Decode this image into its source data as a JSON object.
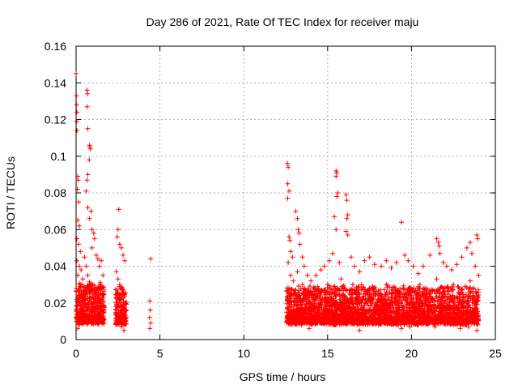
{
  "chart_data": {
    "type": "scatter",
    "title": "Day 286 of 2021, Rate Of TEC Index for receiver maju",
    "xlabel": "GPS time / hours",
    "ylabel": "ROTI / TECUs",
    "xlim": [
      0,
      25
    ],
    "ylim": [
      0,
      0.16
    ],
    "xticks": [
      0,
      5,
      10,
      15,
      20,
      25
    ],
    "xtick_labels": [
      "0",
      "5",
      "10",
      "15",
      "20",
      "25"
    ],
    "yticks": [
      0,
      0.02,
      0.04,
      0.06,
      0.08,
      0.1,
      0.12,
      0.14,
      0.16
    ],
    "ytick_labels": [
      "0",
      "0.02",
      "0.04",
      "0.06",
      "0.08",
      "0.1",
      "0.12",
      "0.14",
      "0.16"
    ],
    "grid": true,
    "marker": "+",
    "color": "#ff0000",
    "series": [
      {
        "name": "ROTI",
        "points": [
          [
            0.0,
            0.145
          ],
          [
            0.02,
            0.133
          ],
          [
            0.03,
            0.128
          ],
          [
            0.05,
            0.124
          ],
          [
            0.05,
            0.114
          ],
          [
            0.04,
            0.119
          ],
          [
            0.1,
            0.089
          ],
          [
            0.12,
            0.087
          ],
          [
            0.08,
            0.082
          ],
          [
            0.15,
            0.075
          ],
          [
            0.1,
            0.065
          ],
          [
            0.2,
            0.062
          ],
          [
            0.05,
            0.055
          ],
          [
            0.15,
            0.052
          ],
          [
            0.25,
            0.048
          ],
          [
            0.05,
            0.043
          ],
          [
            0.2,
            0.04
          ],
          [
            0.3,
            0.038
          ],
          [
            0.1,
            0.035
          ],
          [
            0.4,
            0.033
          ],
          [
            0.5,
            0.045
          ],
          [
            0.6,
            0.04
          ],
          [
            0.35,
            0.03
          ],
          [
            0.45,
            0.025
          ],
          [
            0.55,
            0.02
          ],
          [
            0.7,
            0.035
          ],
          [
            0.8,
            0.03
          ],
          [
            0.9,
            0.025
          ],
          [
            0.3,
            0.015
          ],
          [
            0.5,
            0.012
          ],
          [
            0.65,
            0.136
          ],
          [
            0.68,
            0.134
          ],
          [
            0.66,
            0.127
          ],
          [
            0.7,
            0.115
          ],
          [
            0.8,
            0.106
          ],
          [
            0.82,
            0.105
          ],
          [
            0.85,
            0.104
          ],
          [
            0.78,
            0.098
          ],
          [
            0.7,
            0.09
          ],
          [
            0.65,
            0.087
          ],
          [
            0.6,
            0.081
          ],
          [
            0.7,
            0.072
          ],
          [
            0.9,
            0.07
          ],
          [
            0.8,
            0.066
          ],
          [
            0.95,
            0.06
          ],
          [
            1.05,
            0.058
          ],
          [
            1.1,
            0.055
          ],
          [
            0.95,
            0.05
          ],
          [
            1.2,
            0.046
          ],
          [
            1.3,
            0.044
          ],
          [
            1.4,
            0.04
          ],
          [
            1.5,
            0.043
          ],
          [
            1.6,
            0.035
          ],
          [
            1.0,
            0.03
          ],
          [
            1.15,
            0.025
          ],
          [
            1.3,
            0.02
          ],
          [
            1.5,
            0.018
          ],
          [
            1.6,
            0.015
          ],
          [
            1.2,
            0.01
          ],
          [
            0.2,
            0.008
          ],
          [
            0.1,
            0.006
          ],
          [
            0.05,
            0.018
          ],
          [
            1.45,
            0.028
          ],
          [
            1.55,
            0.022
          ],
          [
            0.75,
            0.02
          ],
          [
            2.55,
            0.071
          ],
          [
            2.5,
            0.06
          ],
          [
            2.45,
            0.056
          ],
          [
            2.6,
            0.052
          ],
          [
            2.7,
            0.05
          ],
          [
            2.8,
            0.046
          ],
          [
            2.9,
            0.043
          ],
          [
            2.4,
            0.037
          ],
          [
            2.5,
            0.033
          ],
          [
            2.6,
            0.03
          ],
          [
            2.75,
            0.028
          ],
          [
            2.85,
            0.025
          ],
          [
            2.5,
            0.022
          ],
          [
            2.65,
            0.02
          ],
          [
            2.8,
            0.017
          ],
          [
            2.9,
            0.015
          ],
          [
            2.45,
            0.012
          ],
          [
            2.6,
            0.009
          ],
          [
            2.7,
            0.007
          ],
          [
            2.85,
            0.005
          ],
          [
            2.55,
            0.014
          ],
          [
            2.75,
            0.01
          ],
          [
            4.45,
            0.044
          ],
          [
            4.4,
            0.021
          ],
          [
            4.42,
            0.016
          ],
          [
            4.38,
            0.012
          ],
          [
            4.45,
            0.009
          ],
          [
            4.4,
            0.006
          ],
          [
            12.6,
            0.096
          ],
          [
            12.65,
            0.094
          ],
          [
            12.62,
            0.085
          ],
          [
            12.7,
            0.081
          ],
          [
            12.62,
            0.077
          ],
          [
            12.7,
            0.056
          ],
          [
            12.75,
            0.054
          ],
          [
            12.8,
            0.048
          ],
          [
            12.9,
            0.045
          ],
          [
            12.65,
            0.042
          ],
          [
            12.8,
            0.035
          ],
          [
            12.95,
            0.032
          ],
          [
            13.1,
            0.07
          ],
          [
            13.2,
            0.066
          ],
          [
            13.25,
            0.06
          ],
          [
            13.3,
            0.058
          ],
          [
            13.35,
            0.052
          ],
          [
            13.5,
            0.045
          ],
          [
            13.6,
            0.04
          ],
          [
            13.2,
            0.037
          ],
          [
            13.8,
            0.035
          ],
          [
            14.0,
            0.032
          ],
          [
            14.3,
            0.035
          ],
          [
            14.6,
            0.038
          ],
          [
            14.8,
            0.04
          ],
          [
            15.1,
            0.043
          ],
          [
            15.5,
            0.092
          ],
          [
            15.55,
            0.091
          ],
          [
            15.5,
            0.089
          ],
          [
            15.6,
            0.08
          ],
          [
            15.55,
            0.078
          ],
          [
            15.4,
            0.067
          ],
          [
            15.5,
            0.06
          ],
          [
            15.3,
            0.047
          ],
          [
            15.7,
            0.042
          ],
          [
            16.1,
            0.079
          ],
          [
            16.15,
            0.076
          ],
          [
            16.2,
            0.068
          ],
          [
            16.15,
            0.066
          ],
          [
            16.1,
            0.059
          ],
          [
            16.2,
            0.057
          ],
          [
            16.4,
            0.045
          ],
          [
            16.6,
            0.04
          ],
          [
            16.9,
            0.037
          ],
          [
            17.2,
            0.043
          ],
          [
            17.5,
            0.045
          ],
          [
            17.8,
            0.041
          ],
          [
            18.2,
            0.04
          ],
          [
            18.5,
            0.043
          ],
          [
            18.8,
            0.039
          ],
          [
            19.1,
            0.042
          ],
          [
            19.4,
            0.064
          ],
          [
            19.6,
            0.046
          ],
          [
            19.8,
            0.043
          ],
          [
            20.1,
            0.04
          ],
          [
            20.4,
            0.036
          ],
          [
            20.7,
            0.04
          ],
          [
            21.1,
            0.046
          ],
          [
            21.5,
            0.055
          ],
          [
            21.6,
            0.053
          ],
          [
            21.65,
            0.051
          ],
          [
            21.7,
            0.047
          ],
          [
            21.9,
            0.042
          ],
          [
            22.1,
            0.04
          ],
          [
            22.4,
            0.038
          ],
          [
            22.7,
            0.041
          ],
          [
            23.0,
            0.045
          ],
          [
            23.3,
            0.05
          ],
          [
            23.5,
            0.053
          ],
          [
            23.6,
            0.047
          ],
          [
            23.9,
            0.057
          ],
          [
            23.95,
            0.055
          ],
          [
            23.8,
            0.04
          ],
          [
            24.0,
            0.035
          ],
          [
            12.7,
            0.028
          ],
          [
            13.0,
            0.025
          ],
          [
            13.5,
            0.03
          ],
          [
            14.2,
            0.028
          ],
          [
            15.0,
            0.03
          ],
          [
            15.8,
            0.033
          ],
          [
            16.5,
            0.03
          ],
          [
            17.5,
            0.028
          ],
          [
            18.5,
            0.03
          ],
          [
            19.5,
            0.028
          ],
          [
            20.5,
            0.03
          ],
          [
            21.5,
            0.033
          ],
          [
            22.5,
            0.03
          ],
          [
            23.5,
            0.032
          ],
          [
            12.6,
            0.012
          ],
          [
            13.4,
            0.01
          ],
          [
            14.4,
            0.009
          ],
          [
            15.4,
            0.008
          ],
          [
            16.4,
            0.01
          ],
          [
            17.4,
            0.008
          ],
          [
            18.4,
            0.009
          ],
          [
            19.4,
            0.006
          ],
          [
            20.4,
            0.008
          ],
          [
            21.4,
            0.007
          ],
          [
            22.4,
            0.009
          ],
          [
            23.4,
            0.007
          ],
          [
            23.9,
            0.005
          ],
          [
            13.9,
            0.006
          ],
          [
            16.9,
            0.005
          ],
          [
            19.9,
            0.007
          ],
          [
            22.9,
            0.006
          ]
        ]
      }
    ],
    "dense_regions": [
      {
        "x_range": [
          0.0,
          1.7
        ],
        "y_range": [
          0.004,
          0.032
        ]
      },
      {
        "x_range": [
          2.35,
          3.0
        ],
        "y_range": [
          0.004,
          0.03
        ]
      },
      {
        "x_range": [
          12.55,
          24.0
        ],
        "y_range": [
          0.004,
          0.03
        ]
      }
    ]
  }
}
